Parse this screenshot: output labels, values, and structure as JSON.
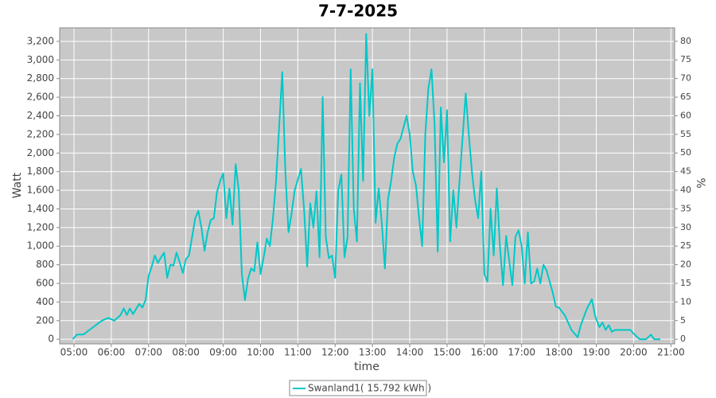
{
  "chart_data": {
    "type": "line",
    "title": "7-7-2025",
    "xlabel": "time",
    "ylabel": "Watt",
    "y2label": "%",
    "x": [
      "04:58",
      "05:05",
      "05:15",
      "05:25",
      "05:35",
      "05:45",
      "05:55",
      "06:05",
      "06:15",
      "06:20",
      "06:25",
      "06:30",
      "06:35",
      "06:45",
      "06:50",
      "06:55",
      "07:00",
      "07:05",
      "07:10",
      "07:15",
      "07:20",
      "07:25",
      "07:30",
      "07:35",
      "07:40",
      "07:45",
      "07:50",
      "07:55",
      "08:00",
      "08:05",
      "08:10",
      "08:15",
      "08:20",
      "08:25",
      "08:30",
      "08:35",
      "08:40",
      "08:45",
      "08:50",
      "08:55",
      "09:00",
      "09:05",
      "09:10",
      "09:15",
      "09:20",
      "09:25",
      "09:30",
      "09:35",
      "09:40",
      "09:45",
      "09:50",
      "09:55",
      "10:00",
      "10:05",
      "10:10",
      "10:15",
      "10:20",
      "10:25",
      "10:35",
      "10:40",
      "10:45",
      "10:50",
      "10:55",
      "11:05",
      "11:10",
      "11:15",
      "11:20",
      "11:25",
      "11:30",
      "11:35",
      "11:40",
      "11:45",
      "11:50",
      "11:55",
      "12:00",
      "12:05",
      "12:10",
      "12:15",
      "12:20",
      "12:25",
      "12:30",
      "12:35",
      "12:40",
      "12:45",
      "12:50",
      "12:55",
      "13:00",
      "13:05",
      "13:10",
      "13:15",
      "13:20",
      "13:25",
      "13:30",
      "13:35",
      "13:40",
      "13:45",
      "13:55",
      "14:00",
      "14:05",
      "14:10",
      "14:15",
      "14:20",
      "14:25",
      "14:30",
      "14:35",
      "14:40",
      "14:45",
      "14:50",
      "14:55",
      "15:00",
      "15:05",
      "15:10",
      "15:15",
      "15:20",
      "15:30",
      "15:35",
      "15:40",
      "15:45",
      "15:50",
      "15:55",
      "16:00",
      "16:05",
      "16:10",
      "16:15",
      "16:20",
      "16:25",
      "16:30",
      "16:35",
      "16:45",
      "16:50",
      "16:55",
      "17:00",
      "17:05",
      "17:10",
      "17:15",
      "17:20",
      "17:25",
      "17:30",
      "17:35",
      "17:40",
      "17:45",
      "17:50",
      "17:55",
      "18:00",
      "18:10",
      "18:20",
      "18:30",
      "18:35",
      "18:45",
      "18:53",
      "18:58",
      "19:05",
      "19:10",
      "19:15",
      "19:20",
      "19:25",
      "19:30",
      "19:40",
      "19:55",
      "20:00",
      "20:10",
      "20:20",
      "20:28",
      "20:33",
      "20:43"
    ],
    "series": [
      {
        "name": "Swanland1( 15.792 kWh )",
        "color": "#00c8c8",
        "values": [
          0,
          50,
          50,
          100,
          150,
          200,
          230,
          200,
          260,
          330,
          260,
          330,
          270,
          380,
          340,
          420,
          680,
          780,
          900,
          820,
          880,
          930,
          660,
          800,
          790,
          930,
          830,
          710,
          860,
          900,
          1100,
          1300,
          1380,
          1200,
          950,
          1150,
          1280,
          1300,
          1580,
          1700,
          1780,
          1300,
          1620,
          1230,
          1880,
          1600,
          700,
          420,
          650,
          760,
          730,
          1040,
          700,
          880,
          1080,
          1000,
          1300,
          1700,
          2870,
          1800,
          1150,
          1350,
          1600,
          1830,
          1400,
          780,
          1460,
          1200,
          1590,
          880,
          2600,
          1100,
          870,
          900,
          660,
          1600,
          1770,
          880,
          1100,
          2900,
          1400,
          1050,
          2750,
          1700,
          3280,
          2400,
          2900,
          1250,
          1620,
          1250,
          760,
          1500,
          1700,
          1950,
          2100,
          2150,
          2400,
          2200,
          1800,
          1650,
          1300,
          1000,
          2200,
          2700,
          2900,
          2300,
          940,
          2490,
          1900,
          2460,
          1050,
          1600,
          1200,
          1700,
          2640,
          2200,
          1800,
          1500,
          1300,
          1800,
          700,
          620,
          1400,
          900,
          1620,
          1000,
          580,
          1110,
          580,
          1100,
          1170,
          1000,
          600,
          1150,
          600,
          620,
          760,
          600,
          800,
          740,
          620,
          500,
          350,
          340,
          250,
          100,
          20,
          150,
          330,
          430,
          250,
          130,
          180,
          100,
          150,
          80,
          100,
          100,
          100,
          60,
          0,
          0,
          50,
          0,
          0
        ]
      }
    ],
    "xlim": [
      "04:37",
      "21:06"
    ],
    "xticks": [
      "05:00",
      "06:00",
      "07:00",
      "08:00",
      "09:00",
      "10:00",
      "11:00",
      "12:00",
      "13:00",
      "14:00",
      "15:00",
      "16:00",
      "17:00",
      "18:00",
      "19:00",
      "20:00",
      "21:00"
    ],
    "ylim": [
      -50,
      3345
    ],
    "yticks": [
      0,
      {
        "value": 200,
        "label": "200"
      },
      {
        "value": 400,
        "label": "400"
      },
      {
        "value": 600,
        "label": "600"
      },
      {
        "value": 800,
        "label": "800"
      },
      {
        "value": 1000,
        "label": "1,000"
      },
      {
        "value": 1200,
        "label": "1,200"
      },
      {
        "value": 1400,
        "label": "1,400"
      },
      {
        "value": 1600,
        "label": "1,600"
      },
      {
        "value": 1800,
        "label": "1,800"
      },
      {
        "value": 2000,
        "label": "2,000"
      },
      {
        "value": 2200,
        "label": "2,200"
      },
      {
        "value": 2400,
        "label": "2,400"
      },
      {
        "value": 2600,
        "label": "2,600"
      },
      {
        "value": 2800,
        "label": "2,800"
      },
      {
        "value": 3000,
        "label": "3,000"
      },
      {
        "value": 3200,
        "label": "3,200"
      }
    ],
    "y2lim": [
      -1.25,
      83.6
    ],
    "y2ticks": [
      0,
      5,
      10,
      15,
      20,
      25,
      30,
      35,
      40,
      45,
      50,
      55,
      60,
      65,
      70,
      75,
      80
    ],
    "grid": true
  }
}
